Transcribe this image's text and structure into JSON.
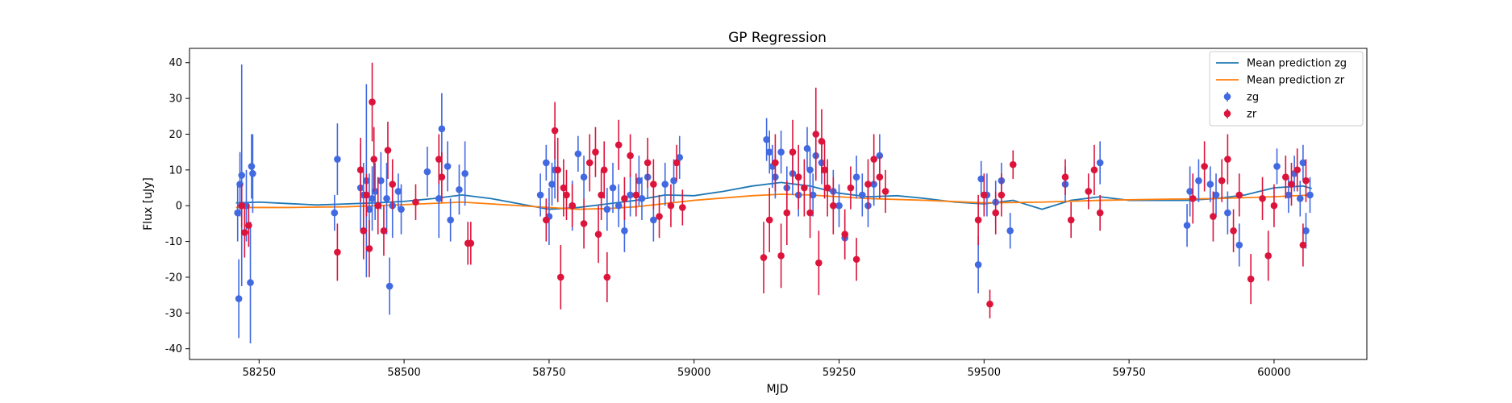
{
  "chart_data": {
    "type": "scatter",
    "title": "GP Regression",
    "xlabel": "MJD",
    "ylabel": "Flux [uJy]",
    "xlim": [
      58130,
      60160
    ],
    "ylim": [
      -43,
      44
    ],
    "xticks": [
      58250,
      58500,
      58750,
      59000,
      59250,
      59500,
      59750,
      60000
    ],
    "yticks": [
      -40,
      -30,
      -20,
      -10,
      0,
      10,
      20,
      30,
      40
    ],
    "grid": false,
    "legend_position": "top-right",
    "legend": [
      "Mean prediction zg",
      "Mean prediction zr",
      "zg",
      "zr"
    ],
    "colors": {
      "zg_line": "#1f77b4",
      "zr_line": "#ff7f0e",
      "zg_points": "#4169e1",
      "zr_points": "#dc143c"
    },
    "series": [
      {
        "name": "Mean prediction zg",
        "kind": "line",
        "x": [
          58210,
          58250,
          58300,
          58350,
          58400,
          58450,
          58500,
          58550,
          58600,
          58650,
          58700,
          58750,
          58800,
          58850,
          58900,
          58950,
          59000,
          59050,
          59100,
          59150,
          59200,
          59250,
          59300,
          59350,
          59400,
          59450,
          59500,
          59550,
          59600,
          59650,
          59700,
          59750,
          59800,
          59850,
          59900,
          59950,
          60000,
          60050,
          60065
        ],
        "y": [
          0.8,
          1.0,
          0.6,
          0.2,
          0.5,
          0.8,
          1.2,
          2.0,
          3.0,
          2.0,
          0.5,
          -1.0,
          -0.5,
          0.5,
          1.5,
          3.0,
          2.8,
          4.0,
          5.5,
          6.5,
          5.5,
          3.5,
          2.5,
          2.8,
          2.0,
          1.0,
          0.5,
          1.5,
          -1.0,
          1.5,
          2.5,
          1.5,
          1.5,
          1.5,
          2.0,
          3.0,
          5.0,
          5.5,
          4.8
        ]
      },
      {
        "name": "Mean prediction zr",
        "kind": "line",
        "x": [
          58210,
          58300,
          58400,
          58500,
          58600,
          58700,
          58800,
          58850,
          58900,
          59000,
          59100,
          59150,
          59200,
          59250,
          59300,
          59400,
          59500,
          59600,
          59700,
          59800,
          59900,
          60000,
          60065
        ],
        "y": [
          -0.5,
          -0.5,
          -0.3,
          0.3,
          1.0,
          0.0,
          -1.0,
          -0.8,
          -0.3,
          1.5,
          2.8,
          3.2,
          3.0,
          2.5,
          2.0,
          1.5,
          0.8,
          1.0,
          1.5,
          1.8,
          2.0,
          2.5,
          3.0
        ]
      },
      {
        "name": "zg",
        "kind": "errorbar",
        "x": [
          58213,
          58215,
          58217,
          58220,
          58228,
          58235,
          58237,
          58239,
          58380,
          58385,
          58425,
          58430,
          58435,
          58440,
          58445,
          58450,
          58460,
          58470,
          58475,
          58480,
          58490,
          58495,
          58540,
          58560,
          58565,
          58575,
          58580,
          58595,
          58605,
          58735,
          58745,
          58750,
          58755,
          58760,
          58790,
          58800,
          58810,
          58850,
          58860,
          58870,
          58880,
          58890,
          58905,
          58910,
          58920,
          58930,
          58950,
          58965,
          58975,
          59125,
          59130,
          59135,
          59140,
          59150,
          59160,
          59170,
          59180,
          59195,
          59200,
          59205,
          59210,
          59220,
          59240,
          59250,
          59260,
          59280,
          59290,
          59300,
          59310,
          59320,
          59490,
          59495,
          59505,
          59520,
          59530,
          59545,
          59640,
          59700,
          59850,
          59855,
          59870,
          59890,
          59900,
          59920,
          59940,
          60005,
          60025,
          60035,
          60045,
          60050,
          60055,
          60062
        ],
        "y": [
          -2,
          -26,
          6,
          8.5,
          0,
          -21.5,
          11,
          9,
          -2,
          13,
          5,
          3,
          7,
          -1,
          2,
          4,
          7,
          2,
          -22.5,
          0,
          4,
          -1,
          9.5,
          2,
          21.5,
          11,
          -4,
          4.5,
          9,
          3,
          12,
          -3,
          6,
          10,
          0,
          14.5,
          8,
          -1,
          5,
          0,
          -7,
          3,
          7,
          2,
          8,
          -4,
          6,
          7,
          13.5,
          18.5,
          15,
          11,
          8,
          15,
          5,
          9,
          3,
          16,
          10,
          3,
          14,
          12,
          4,
          0,
          -9,
          8,
          3,
          0,
          6,
          14,
          -16.5,
          7.5,
          3,
          1,
          7,
          -7,
          6,
          12,
          -5.5,
          4,
          7,
          6,
          3,
          -2,
          -11,
          11,
          3,
          9,
          2,
          12,
          -7,
          3
        ],
        "yerr": [
          8,
          11,
          9,
          31,
          10,
          17,
          9,
          11,
          5,
          10,
          12,
          9,
          27,
          10,
          9,
          8,
          8,
          10,
          8,
          9,
          5,
          7,
          7,
          11,
          10,
          7,
          6,
          7,
          9,
          6,
          5,
          8,
          6,
          8,
          7,
          5,
          6,
          6,
          7,
          6,
          6,
          6,
          7,
          6,
          6,
          6,
          6,
          6,
          6,
          6,
          6,
          6,
          6,
          6,
          6,
          6,
          6,
          6,
          6,
          6,
          6,
          6,
          6,
          6,
          6,
          6,
          6,
          6,
          6,
          6,
          8,
          5,
          6,
          6,
          5,
          5,
          5,
          6,
          6,
          7,
          6,
          5,
          6,
          6,
          6,
          5,
          5,
          5,
          5,
          5,
          5,
          5
        ]
      },
      {
        "name": "zr",
        "kind": "errorbar",
        "x": [
          58220,
          58225,
          58232,
          58385,
          58425,
          58430,
          58435,
          58440,
          58445,
          58448,
          58455,
          58465,
          58472,
          58480,
          58520,
          58560,
          58565,
          58610,
          58615,
          58745,
          58760,
          58765,
          58770,
          58775,
          58780,
          58790,
          58810,
          58820,
          58830,
          58835,
          58840,
          58845,
          58850,
          58870,
          58880,
          58890,
          58900,
          58920,
          58930,
          58940,
          58960,
          58970,
          58980,
          59120,
          59130,
          59140,
          59150,
          59160,
          59170,
          59180,
          59190,
          59200,
          59210,
          59215,
          59220,
          59225,
          59230,
          59240,
          59260,
          59270,
          59280,
          59300,
          59310,
          59320,
          59330,
          59490,
          59500,
          59510,
          59520,
          59530,
          59550,
          59640,
          59650,
          59680,
          59690,
          59700,
          59860,
          59880,
          59895,
          59910,
          59920,
          59930,
          59940,
          59960,
          59980,
          59990,
          60000,
          60020,
          60030,
          60040,
          60050,
          60055
        ],
        "y": [
          0,
          -7.5,
          -5.5,
          -13,
          10,
          -7,
          3,
          -12,
          29,
          13,
          0,
          -7,
          15.5,
          6,
          1,
          13,
          8,
          -10.5,
          -10.5,
          -4,
          21,
          10,
          -20,
          5,
          3,
          0,
          -5,
          12,
          15,
          -8,
          3,
          10,
          -20,
          17,
          2,
          14,
          3,
          12,
          6,
          -3,
          0,
          12,
          -0.5,
          -14.5,
          -4,
          12,
          -14,
          -2,
          15,
          8,
          5,
          -2,
          20,
          -16,
          18,
          10,
          5,
          0,
          -8,
          5,
          -15,
          6,
          13,
          8,
          4,
          -4,
          3,
          -27.5,
          -2,
          3,
          11.5,
          8,
          -4,
          4,
          10,
          -2,
          2,
          11,
          -3,
          7,
          13,
          -7,
          3,
          -20.5,
          2,
          -14,
          0,
          8,
          6,
          10,
          -11,
          7
        ],
        "yerr": [
          6,
          7,
          6,
          8,
          9,
          8,
          6,
          8,
          11,
          9,
          8,
          7,
          8,
          7,
          5,
          7,
          7,
          6,
          6,
          6,
          8,
          9,
          9,
          8,
          7,
          6,
          7,
          8,
          7,
          8,
          7,
          8,
          7,
          7,
          6,
          6,
          6,
          7,
          7,
          6,
          6,
          5,
          5,
          10,
          9,
          8,
          9,
          9,
          9,
          9,
          8,
          7,
          13,
          9,
          9,
          8,
          8,
          8,
          7,
          6,
          6,
          7,
          7,
          6,
          6,
          7,
          6,
          4,
          6,
          6,
          4,
          5,
          5,
          5,
          7,
          5,
          7,
          7,
          7,
          6,
          7,
          6,
          6,
          7,
          6,
          7,
          6,
          6,
          6,
          6,
          6,
          6
        ]
      }
    ]
  }
}
